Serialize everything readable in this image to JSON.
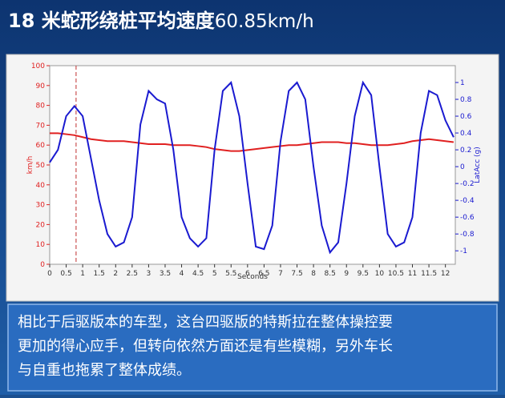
{
  "chart_data": {
    "type": "line",
    "title": "18 米蛇形绕桩平均速度",
    "title_value": "60.85km/h",
    "x_label": "Seconds",
    "y_label": "km/h",
    "y2_label": "LatAcc (g)",
    "x": [
      0,
      0.25,
      0.5,
      0.75,
      1,
      1.25,
      1.5,
      1.75,
      2,
      2.25,
      2.5,
      2.75,
      3,
      3.25,
      3.5,
      3.75,
      4,
      4.25,
      4.5,
      4.75,
      5,
      5.25,
      5.5,
      5.75,
      6,
      6.25,
      6.5,
      6.75,
      7,
      7.25,
      7.5,
      7.75,
      8,
      8.25,
      8.5,
      8.75,
      9,
      9.25,
      9.5,
      9.75,
      10,
      10.25,
      10.5,
      10.75,
      11,
      11.25,
      11.5,
      11.75,
      12,
      12.25
    ],
    "series": [
      {
        "name": "km/h",
        "color": "#e02020",
        "values": [
          66,
          66,
          65.5,
          65,
          64,
          63,
          62.5,
          62,
          62,
          62,
          61.5,
          61,
          60.5,
          60.5,
          60.5,
          60,
          60,
          60,
          59.5,
          59,
          58,
          57.5,
          57,
          57,
          57.5,
          58,
          58.5,
          59,
          59.5,
          60,
          60,
          60.5,
          61,
          61.5,
          61.5,
          61.5,
          61,
          61,
          60.5,
          60,
          60,
          60,
          60.5,
          61,
          62,
          62.5,
          63,
          62.5,
          62,
          61.5
        ]
      },
      {
        "name": "LatAcc (g)",
        "color": "#1a1ad0",
        "axis": "y2",
        "values": [
          0.05,
          0.2,
          0.6,
          0.72,
          0.6,
          0.1,
          -0.4,
          -0.8,
          -0.95,
          -0.9,
          -0.6,
          0.5,
          0.9,
          0.8,
          0.75,
          0.2,
          -0.6,
          -0.85,
          -0.95,
          -0.85,
          0.2,
          0.9,
          1.0,
          0.6,
          -0.2,
          -0.95,
          -0.98,
          -0.7,
          0.3,
          0.9,
          1.0,
          0.8,
          0.0,
          -0.7,
          -1.02,
          -0.9,
          -0.2,
          0.6,
          1.0,
          0.85,
          0.0,
          -0.8,
          -0.95,
          -0.9,
          -0.6,
          0.4,
          0.9,
          0.85,
          0.55,
          0.35
        ]
      }
    ],
    "cursor_x": 0.8,
    "xlim": [
      0,
      12.3
    ],
    "xticks": [
      0,
      0.5,
      1,
      1.5,
      2,
      2.5,
      3,
      3.5,
      4,
      4.5,
      5,
      5.5,
      6,
      6.5,
      7,
      7.5,
      8,
      8.5,
      9,
      9.5,
      10,
      10.5,
      11,
      11.5,
      12
    ],
    "ylim": [
      0,
      100
    ],
    "yticks": [
      0,
      10,
      20,
      30,
      40,
      50,
      60,
      70,
      80,
      90,
      100
    ],
    "y2lim": [
      -1.16,
      1.2
    ],
    "y2ticks": [
      -1,
      -0.8,
      -0.6,
      -0.4,
      -0.2,
      0,
      0.2,
      0.4,
      0.6,
      0.8,
      1
    ]
  },
  "caption": [
    "相比于后驱版本的车型，这台四驱版的特斯拉在整体操控要",
    "更加的得心应手，但转向依然方面还是有些模糊，另外车长",
    "与自重也拖累了整体成绩。"
  ]
}
